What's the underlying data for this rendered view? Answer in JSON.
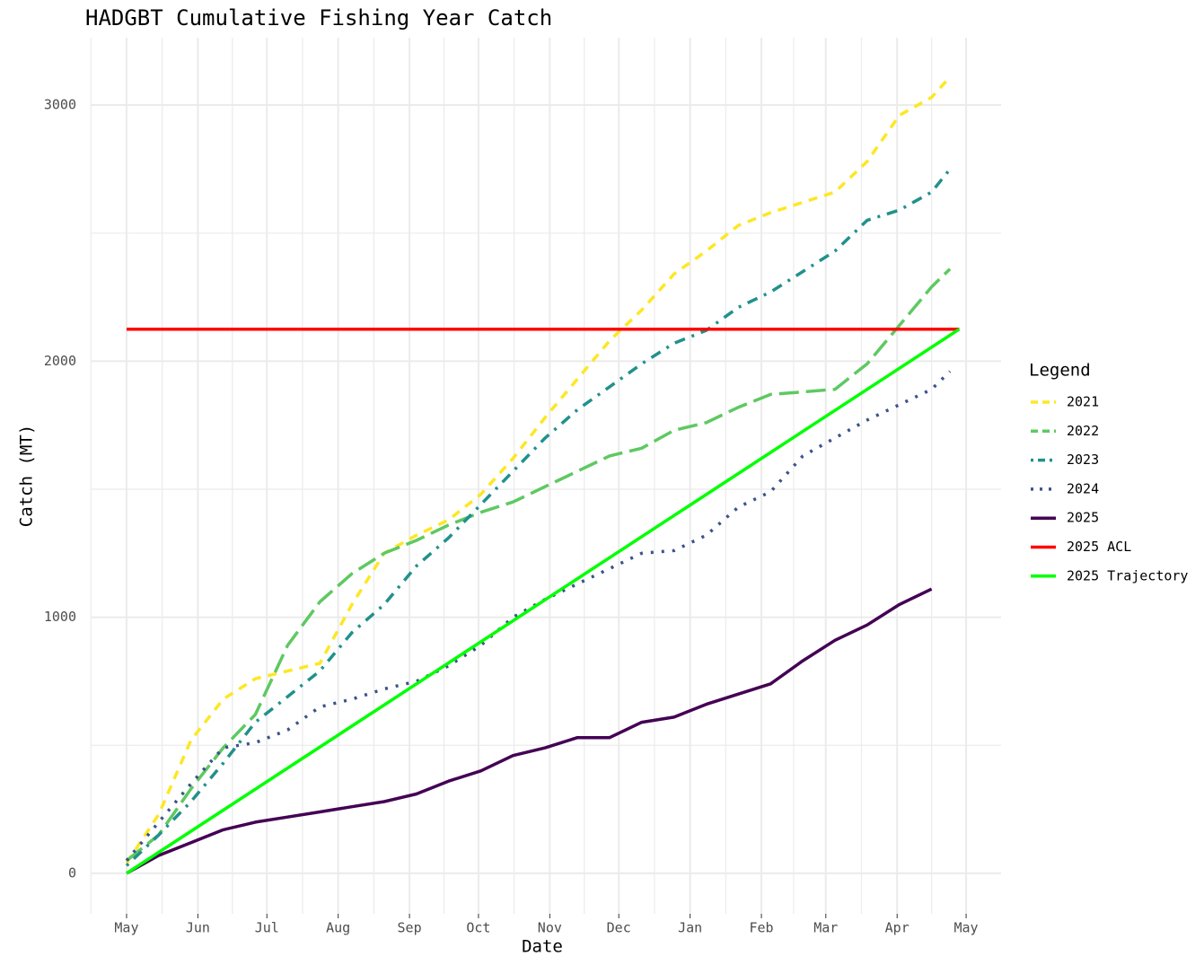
{
  "chart_data": {
    "type": "line",
    "title": "HADGBT Cumulative Fishing Year Catch",
    "x_label": "Date",
    "y_label": "Catch (MT)",
    "legend_title": "Legend",
    "legend": "right",
    "grid": true,
    "x": [
      0,
      14,
      28,
      42,
      56,
      70,
      84,
      98,
      112,
      126,
      140,
      154,
      168,
      182,
      196,
      210,
      224,
      238,
      252,
      266,
      280,
      294,
      308,
      322,
      336,
      350,
      358
    ],
    "xlim": [
      -15.6,
      380.2
    ],
    "xticks": [
      {
        "value": 0,
        "label": "May"
      },
      {
        "value": 31,
        "label": "Jun"
      },
      {
        "value": 61,
        "label": "Jul"
      },
      {
        "value": 92,
        "label": "Aug"
      },
      {
        "value": 123,
        "label": "Sep"
      },
      {
        "value": 153,
        "label": "Oct"
      },
      {
        "value": 184,
        "label": "Nov"
      },
      {
        "value": 214,
        "label": "Dec"
      },
      {
        "value": 245,
        "label": "Jan"
      },
      {
        "value": 276,
        "label": "Feb"
      },
      {
        "value": 304,
        "label": "Mar"
      },
      {
        "value": 335,
        "label": "Apr"
      },
      {
        "value": 365,
        "label": "May"
      }
    ],
    "ylim": [
      -158,
      3263
    ],
    "yticks": [
      0,
      1000,
      2000,
      3000
    ],
    "series": [
      {
        "name": "2021",
        "color": "#fde725",
        "linetype": "dashed",
        "values": [
          40,
          230,
          520,
          680,
          760,
          790,
          820,
          1050,
          1250,
          1320,
          1380,
          1480,
          1620,
          1780,
          1930,
          2080,
          2200,
          2340,
          2430,
          2530,
          2580,
          2620,
          2660,
          2780,
          2960,
          3030,
          3110
        ]
      },
      {
        "name": "2022",
        "color": "#5ec962",
        "linetype": "longdash",
        "values": [
          50,
          150,
          330,
          490,
          620,
          890,
          1060,
          1170,
          1250,
          1300,
          1360,
          1410,
          1450,
          1510,
          1570,
          1630,
          1660,
          1730,
          1760,
          1820,
          1870,
          1880,
          1890,
          1990,
          2140,
          2290,
          2360
        ]
      },
      {
        "name": "2023",
        "color": "#21918c",
        "linetype": "dotdash",
        "values": [
          30,
          150,
          280,
          430,
          590,
          690,
          790,
          940,
          1050,
          1200,
          1310,
          1440,
          1570,
          1700,
          1810,
          1900,
          1990,
          2070,
          2120,
          2210,
          2270,
          2350,
          2430,
          2550,
          2590,
          2660,
          2750
        ]
      },
      {
        "name": "2024",
        "color": "#3b528b",
        "linetype": "dotted",
        "values": [
          50,
          200,
          350,
          490,
          510,
          560,
          650,
          680,
          720,
          750,
          810,
          890,
          1000,
          1070,
          1130,
          1190,
          1250,
          1260,
          1320,
          1430,
          1490,
          1630,
          1700,
          1770,
          1830,
          1890,
          1960
        ]
      },
      {
        "name": "2025",
        "color": "#440154",
        "linetype": "solid",
        "values": [
          0,
          70,
          120,
          170,
          200,
          220,
          240,
          260,
          280,
          310,
          360,
          400,
          460,
          490,
          530,
          530,
          590,
          610,
          660,
          700,
          740,
          830,
          910,
          970,
          1050,
          1110,
          null
        ]
      },
      {
        "name": "2025 ACL",
        "color": "#ff0000",
        "linetype": "solid",
        "x": [
          0,
          362
        ],
        "values": [
          2125,
          2125
        ]
      },
      {
        "name": "2025 Trajectory",
        "color": "#00ff00",
        "linetype": "solid",
        "x": [
          0,
          362
        ],
        "values": [
          0,
          2125
        ]
      }
    ]
  }
}
